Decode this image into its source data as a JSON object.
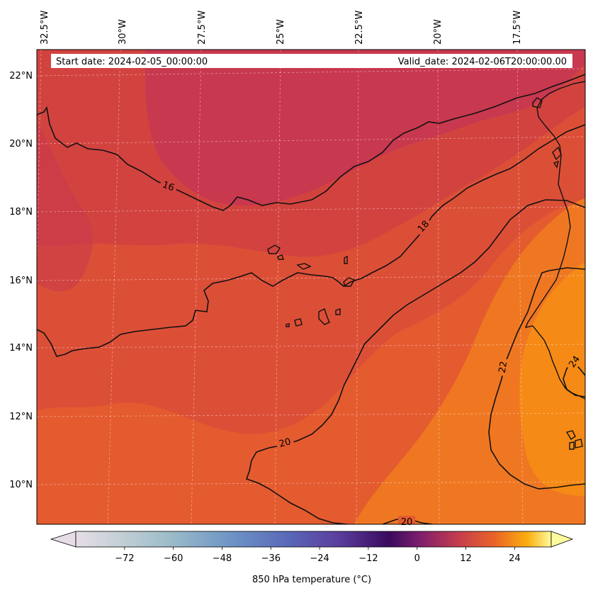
{
  "map": {
    "start_date_label": "Start date: 2024-02-05_00:00:00",
    "valid_date_label": "Valid_date: 2024-02-06T20:00:00.00",
    "longitude_ticks": [
      "32.5°W",
      "30°W",
      "27.5°W",
      "25°W",
      "22.5°W",
      "20°W",
      "17.5°W"
    ],
    "latitude_ticks": [
      "22°N",
      "20°N",
      "18°N",
      "16°N",
      "14°N",
      "12°N",
      "10°N"
    ],
    "contour_labels": [
      "16",
      "18",
      "20",
      "22",
      "24",
      "20"
    ]
  },
  "colorbar": {
    "label": "850 hPa temperature (°C)",
    "ticks": [
      "−72",
      "−60",
      "−48",
      "−36",
      "−24",
      "−12",
      "0",
      "12",
      "24"
    ],
    "tick_values": [
      -72,
      -60,
      -48,
      -36,
      -24,
      -12,
      0,
      12,
      24
    ],
    "range": [
      -84,
      33
    ]
  },
  "colors": {
    "cold_band": "#c8384f",
    "mid_band": "#d9483f",
    "warm_band": "#e45b2f",
    "hot_band": "#ef7722",
    "hottest_band": "#f58a16"
  }
}
